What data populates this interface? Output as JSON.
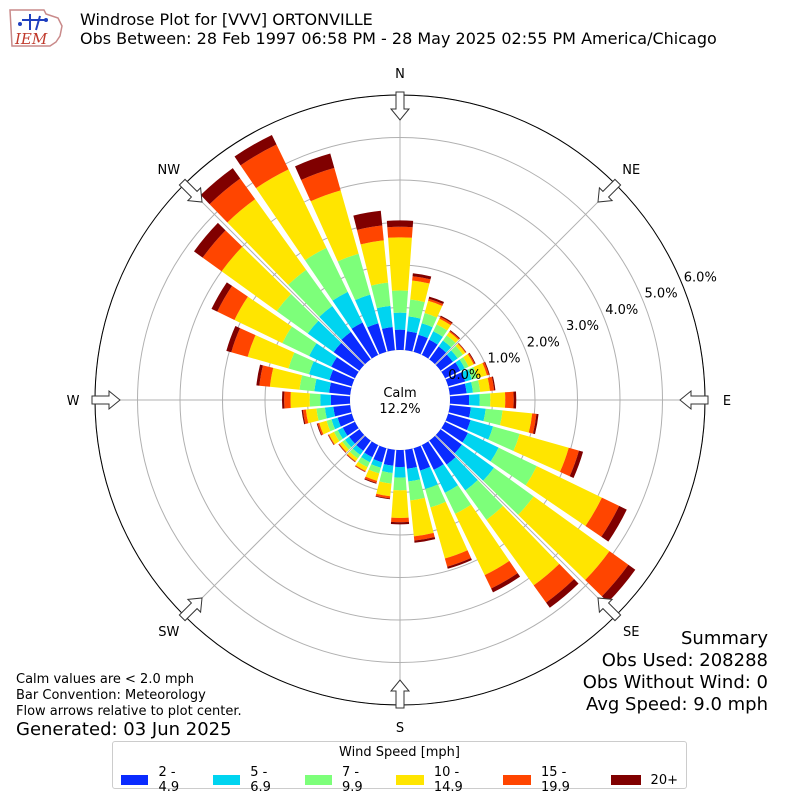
{
  "header": {
    "logo_text": "IEM",
    "title_line1": "Windrose Plot for [VVV] ORTONVILLE",
    "title_line2": "Obs Between: 28 Feb 1997 06:58 PM - 28 May 2025 02:55 PM America/Chicago"
  },
  "notes": {
    "line1": "Calm values are < 2.0 mph",
    "line2": "Bar Convention: Meteorology",
    "line3": "Flow arrows relative to plot center.",
    "generated": "Generated: 03 Jun 2025"
  },
  "summary": {
    "title": "Summary",
    "obs_used": "Obs Used: 208288",
    "obs_without_wind": "Obs Without Wind: 0",
    "avg_speed": "Avg Speed: 9.0 mph"
  },
  "chart_data": {
    "type": "windrose",
    "calm_label": "Calm",
    "calm_value": "12.2%",
    "radial_ticks": [
      "0.0%",
      "1.0%",
      "2.0%",
      "3.0%",
      "4.0%",
      "5.0%",
      "6.0%"
    ],
    "radial_max": 6.0,
    "directions": [
      "N",
      "NE",
      "E",
      "SE",
      "S",
      "SW",
      "W",
      "NW"
    ],
    "legend_title": "Wind Speed [mph]",
    "bins": [
      {
        "label": "2 - 4.9",
        "color": "#0a2bff"
      },
      {
        "label": "5 - 6.9",
        "color": "#00d4f0"
      },
      {
        "label": "7 - 9.9",
        "color": "#7dff7a"
      },
      {
        "label": "10 - 14.9",
        "color": "#ffe500"
      },
      {
        "label": "15 - 19.9",
        "color": "#ff4500"
      },
      {
        "label": "20+",
        "color": "#800000"
      }
    ],
    "sectors_deg": [
      0,
      10,
      20,
      30,
      40,
      50,
      60,
      70,
      80,
      90,
      100,
      110,
      120,
      130,
      140,
      150,
      160,
      170,
      180,
      190,
      200,
      210,
      220,
      230,
      240,
      250,
      260,
      270,
      280,
      290,
      300,
      310,
      320,
      330,
      340,
      350
    ],
    "cumulative": [
      [
        0.48,
        0.88,
        1.4,
        2.65,
        2.9,
        3.05
      ],
      [
        0.45,
        0.8,
        1.2,
        1.65,
        1.75,
        1.82
      ],
      [
        0.42,
        0.7,
        0.95,
        1.25,
        1.3,
        1.35
      ],
      [
        0.4,
        0.62,
        0.8,
        0.95,
        1.0,
        1.03
      ],
      [
        0.38,
        0.55,
        0.7,
        0.8,
        0.83,
        0.85
      ],
      [
        0.36,
        0.5,
        0.65,
        0.72,
        0.74,
        0.75
      ],
      [
        0.4,
        0.52,
        0.62,
        0.75,
        0.78,
        0.8
      ],
      [
        0.42,
        0.58,
        0.72,
        0.95,
        1.0,
        1.02
      ],
      [
        0.4,
        0.55,
        0.72,
        0.95,
        1.05,
        1.08
      ],
      [
        0.45,
        0.7,
        0.95,
        1.3,
        1.5,
        1.56
      ],
      [
        0.5,
        0.85,
        1.25,
        1.95,
        2.05,
        2.1
      ],
      [
        0.55,
        1.1,
        1.75,
        2.95,
        3.2,
        3.3
      ],
      [
        0.6,
        1.4,
        2.4,
        4.1,
        4.55,
        4.75
      ],
      [
        0.62,
        1.55,
        2.7,
        4.9,
        5.45,
        5.65
      ],
      [
        0.7,
        1.45,
        2.3,
        4.2,
        4.7,
        4.85
      ],
      [
        0.65,
        1.25,
        1.8,
        3.4,
        3.75,
        3.85
      ],
      [
        0.55,
        1.0,
        1.45,
        2.7,
        2.9,
        2.95
      ],
      [
        0.45,
        0.75,
        1.2,
        2.05,
        2.15,
        2.2
      ],
      [
        0.4,
        0.65,
        0.95,
        1.6,
        1.7,
        1.75
      ],
      [
        0.38,
        0.55,
        0.8,
        1.1,
        1.15,
        1.17
      ],
      [
        0.35,
        0.48,
        0.62,
        0.8,
        0.85,
        0.87
      ],
      [
        0.32,
        0.45,
        0.58,
        0.68,
        0.7,
        0.71
      ],
      [
        0.3,
        0.42,
        0.52,
        0.6,
        0.62,
        0.63
      ],
      [
        0.3,
        0.42,
        0.5,
        0.58,
        0.6,
        0.61
      ],
      [
        0.32,
        0.45,
        0.55,
        0.68,
        0.7,
        0.71
      ],
      [
        0.35,
        0.5,
        0.62,
        0.8,
        0.84,
        0.86
      ],
      [
        0.4,
        0.6,
        0.8,
        1.05,
        1.12,
        1.15
      ],
      [
        0.45,
        0.7,
        0.95,
        1.4,
        1.55,
        1.6
      ],
      [
        0.5,
        0.85,
        1.2,
        1.9,
        2.15,
        2.22
      ],
      [
        0.55,
        1.05,
        1.55,
        2.55,
        2.95,
        3.07
      ],
      [
        0.62,
        1.2,
        1.9,
        3.15,
        3.6,
        3.75
      ],
      [
        0.75,
        1.5,
        2.4,
        4.0,
        4.55,
        4.8
      ],
      [
        0.8,
        1.55,
        2.6,
        4.65,
        5.25,
        5.55
      ],
      [
        0.85,
        1.65,
        2.8,
        4.85,
        5.5,
        5.75
      ],
      [
        0.7,
        1.4,
        2.4,
        3.95,
        4.5,
        4.85
      ],
      [
        0.55,
        1.05,
        1.6,
        2.6,
        2.95,
        3.3
      ]
    ]
  }
}
